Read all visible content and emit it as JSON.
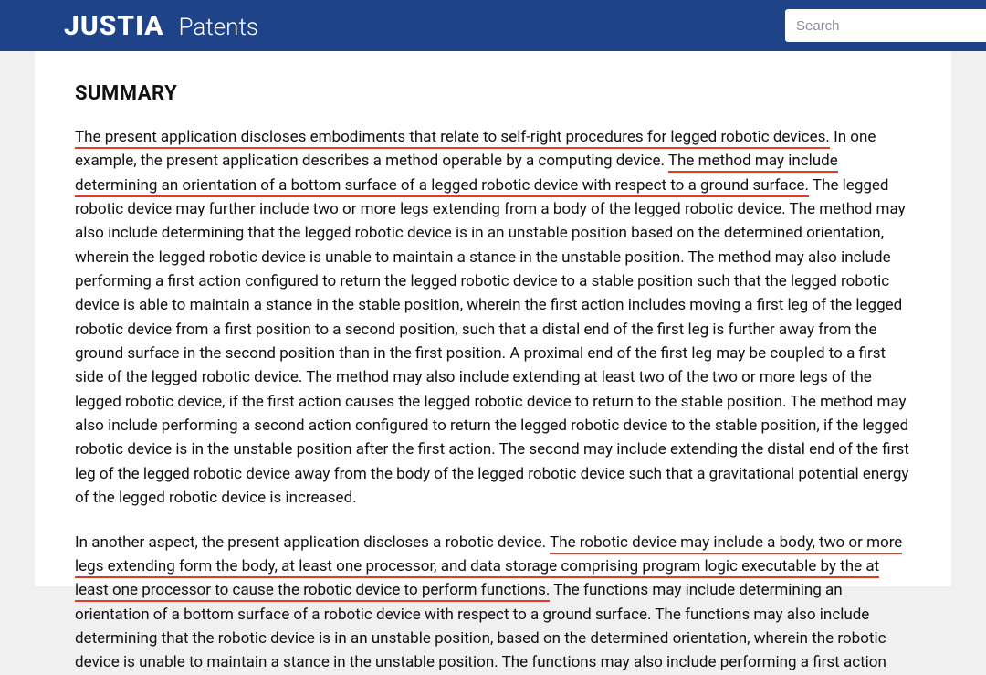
{
  "header": {
    "logo": "JUSTIA",
    "section": "Patents",
    "search_placeholder": "Search"
  },
  "colors": {
    "header_bg": "#1f4388",
    "underline": "#e33a2a",
    "page_bg": "#f0f0f0",
    "content_bg": "#ffffff"
  },
  "summary": {
    "heading": "SUMMARY",
    "p1": {
      "s1_ul": "The present application discloses embodiments that relate to self-right procedures for legged robotic devices.",
      "s2": " In one example, the present application describes a method operable by a computing device. ",
      "s3_ul": "The method may include determining an orientation of a bottom surface of a legged robotic device with respect to a ground surface.",
      "s4": " The legged robotic device may further include two or more legs extending from a body of the legged robotic device. The method may also include determining that the legged robotic device is in an unstable position based on the determined orientation, wherein the legged robotic device is unable to maintain a stance in the unstable position. The method may also include performing a first action configured to return the legged robotic device to a stable position such that the legged robotic device is able to maintain a stance in the stable position, wherein the first action includes moving a first leg of the legged robotic device from a first position to a second position, such that a distal end of the first leg is further away from the ground surface in the second position than in the first position. A proximal end of the first leg may be coupled to a first side of the legged robotic device. The method may also include extending at least two of the two or more legs of the legged robotic device, if the first action causes the legged robotic device to return to the stable position. The method may also include performing a second action configured to return the legged robotic device to the stable position, if the legged robotic device is in the unstable position after the first action. The second may include extending the distal end of the first leg of the legged robotic device away from the body of the legged robotic device such that a gravitational potential energy of the legged robotic device is increased."
    },
    "p2": {
      "s1": "In another aspect, the present application discloses a robotic device. ",
      "s2_ul": "The robotic device may include a body, two or more legs extending form the body, at least one processor, and data storage comprising program logic executable by the at least one processor to cause the robotic device to perform functions.",
      "s3": " The functions may include determining an orientation of a bottom surface of a robotic device with respect to a ground surface. The functions may also include determining that the robotic device is in an unstable position, based on the determined orientation, wherein the robotic device is unable to maintain a stance in the unstable position. The functions may also include performing a first action"
    }
  }
}
